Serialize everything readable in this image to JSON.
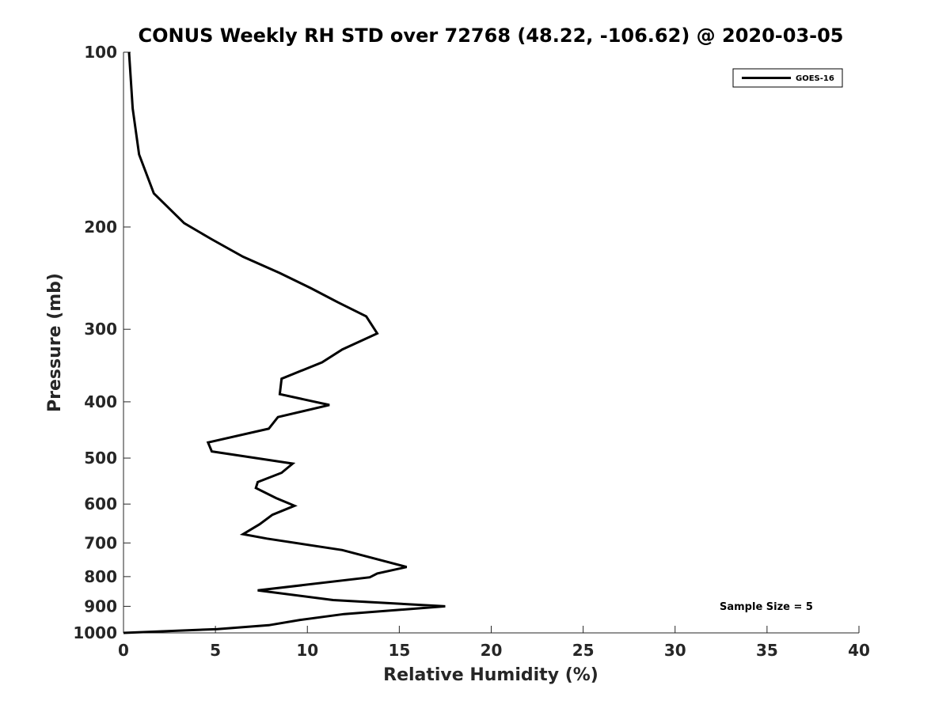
{
  "chart_data": {
    "type": "line",
    "title": "CONUS Weekly RH STD over 72768 (48.22, -106.62) @ 2020-03-05",
    "xlabel": "Relative Humidity (%)",
    "ylabel": "Pressure (mb)",
    "xlim": [
      0,
      40
    ],
    "ylim": [
      100,
      1000
    ],
    "y_scale": "log",
    "y_reversed": true,
    "grid": false,
    "legend_position": "top-right",
    "x_ticks": [
      0,
      5,
      10,
      15,
      20,
      25,
      30,
      35,
      40
    ],
    "y_ticks": [
      100,
      200,
      300,
      400,
      500,
      600,
      700,
      800,
      900,
      1000
    ],
    "annotation": "Sample Size = 5",
    "series": [
      {
        "name": "GOES-16",
        "color": "#000000",
        "points": [
          [
            0.3,
            100
          ],
          [
            0.5,
            125
          ],
          [
            0.85,
            150
          ],
          [
            1.65,
            175
          ],
          [
            3.3,
            197
          ],
          [
            4.8,
            210
          ],
          [
            6.5,
            225
          ],
          [
            8.5,
            240
          ],
          [
            10.2,
            255
          ],
          [
            11.7,
            270
          ],
          [
            13.2,
            285
          ],
          [
            13.8,
            305
          ],
          [
            11.9,
            325
          ],
          [
            10.8,
            342
          ],
          [
            8.6,
            365
          ],
          [
            8.5,
            388
          ],
          [
            11.2,
            405
          ],
          [
            8.4,
            425
          ],
          [
            7.9,
            445
          ],
          [
            4.6,
            470
          ],
          [
            4.8,
            487
          ],
          [
            9.2,
            511
          ],
          [
            8.6,
            530
          ],
          [
            7.3,
            550
          ],
          [
            7.2,
            563
          ],
          [
            8.3,
            586
          ],
          [
            9.3,
            604
          ],
          [
            8.1,
            626
          ],
          [
            7.4,
            650
          ],
          [
            6.5,
            676
          ],
          [
            7.8,
            688
          ],
          [
            11.9,
            720
          ],
          [
            15.4,
            770
          ],
          [
            13.8,
            790
          ],
          [
            13.4,
            802
          ],
          [
            7.3,
            845
          ],
          [
            11.4,
            878
          ],
          [
            17.5,
            900
          ],
          [
            12.0,
            928
          ],
          [
            9.6,
            950
          ],
          [
            7.9,
            970
          ],
          [
            5.1,
            985
          ],
          [
            0.0,
            1000
          ]
        ]
      }
    ]
  }
}
